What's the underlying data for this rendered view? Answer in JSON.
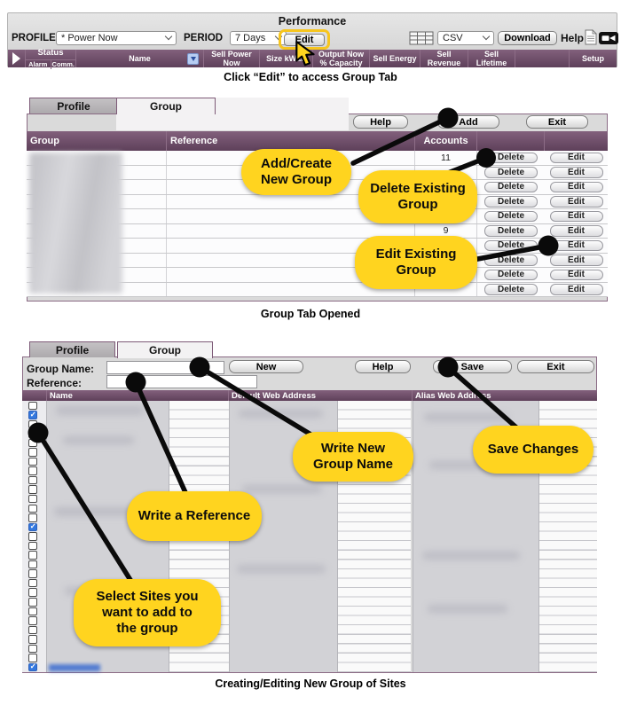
{
  "colors": {
    "purple": "#6f4c68",
    "callout": "#ffd41f",
    "highlight": "#f6c51e",
    "check-blue": "#3478de",
    "link-blue": "#3a6bd0"
  },
  "performance": {
    "title": "Performance",
    "profile_label": "PROFILE",
    "profile_value": "* Power Now",
    "period_label": "PERIOD",
    "period_value": "7 Days",
    "edit_button": "Edit",
    "csv_value": "CSV",
    "download_button": "Download",
    "help_label": "Help",
    "header": {
      "status": "Status",
      "alarm": "Alarm",
      "comm": "Comm.",
      "name": "Name",
      "sell_power_now": "Sell Power Now",
      "size_kwatt": "Size kWatt",
      "output_now": "Output Now % Capacity",
      "sell_energy": "Sell Energy",
      "sell_revenue": "Sell Revenue",
      "sell_lifetime": "Sell Lifetime",
      "setup": "Setup"
    },
    "caption": "Click “Edit” to access Group Tab"
  },
  "group_tab": {
    "tabs": {
      "profile": "Profile",
      "group": "Group"
    },
    "help_button": "Help",
    "add_button": "Add",
    "exit_button": "Exit",
    "columns": {
      "group": "Group",
      "reference": "Reference",
      "accounts": "Accounts"
    },
    "delete_button": "Delete",
    "edit_button": "Edit",
    "rows": [
      {
        "accounts": "11"
      },
      {
        "accounts": ""
      },
      {
        "accounts": ""
      },
      {
        "accounts": ""
      },
      {
        "accounts": ""
      },
      {
        "accounts": "9"
      },
      {
        "accounts": ""
      },
      {
        "accounts": ""
      },
      {
        "accounts": ""
      },
      {
        "accounts": ""
      }
    ],
    "callouts": {
      "add": "Add/Create\nNew Group",
      "delete": "Delete Existing\nGroup",
      "edit": "Edit Existing\nGroup"
    },
    "caption": "Group Tab Opened"
  },
  "edit_group": {
    "tabs": {
      "profile": "Profile",
      "group": "Group"
    },
    "group_name_label": "Group Name:",
    "group_name_value": "",
    "reference_label": "Reference:",
    "reference_value": "",
    "new_button": "New",
    "help_button": "Help",
    "save_button": "Save",
    "exit_button": "Exit",
    "columns": {
      "name": "Name",
      "default_web": "Default Web Address",
      "alias_web": "Alias Web Address"
    },
    "sites": {
      "count": 29,
      "checked_rows": [
        2,
        14,
        29
      ]
    },
    "callouts": {
      "group_name": "Write New\nGroup Name",
      "save": "Save Changes",
      "reference": "Write a Reference",
      "select": "Select Sites you\nwant to add to\nthe group"
    },
    "caption": "Creating/Editing New Group of Sites"
  }
}
